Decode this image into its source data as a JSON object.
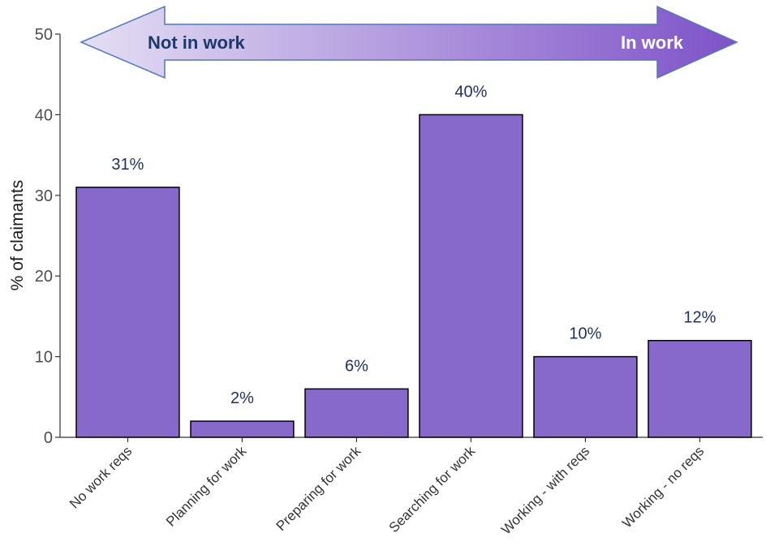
{
  "chart_data": {
    "type": "bar",
    "categories": [
      "No work reqs",
      "Planning for work",
      "Preparing for work",
      "Searching for work",
      "Working - with reqs",
      "Working - no reqs"
    ],
    "values": [
      31,
      2,
      6,
      40,
      10,
      12
    ],
    "data_labels": [
      "31%",
      "2%",
      "6%",
      "40%",
      "10%",
      "12%"
    ],
    "ylabel": "% of claimants",
    "xlabel": "",
    "ylim": [
      0,
      50
    ],
    "yticks": [
      0,
      10,
      20,
      30,
      40,
      50
    ],
    "grid": false,
    "bar_color": "#8769cc",
    "bar_edge_color": "#000000",
    "label_color": "#1f2f5f"
  },
  "banner": {
    "left_label": "Not in work",
    "right_label": "In work",
    "gradient_start": "#e4dff4",
    "gradient_end": "#7e52c8",
    "outline_color": "#5577bb"
  }
}
